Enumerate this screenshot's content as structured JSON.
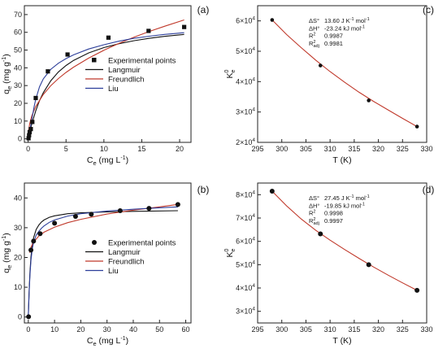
{
  "chart_data": [
    {
      "panel": "(a)",
      "type": "scatter",
      "xlabel": "C",
      "xlabel_sub": "e",
      "xlabel_unit": " (mg L",
      "ylabel": "q",
      "ylabel_sub": "e",
      "ylabel_unit": " (mg g",
      "xlim": [
        -0.5,
        21.5
      ],
      "ylim": [
        -2,
        75
      ],
      "xticks": [
        0,
        5,
        10,
        15,
        20
      ],
      "yticks": [
        0,
        10,
        20,
        30,
        40,
        50,
        60,
        70
      ],
      "legend": "right-middle",
      "series": [
        {
          "name": "Experimental points",
          "kind": "points",
          "marker": "square",
          "color": "#111111",
          "x": [
            0.05,
            0.12,
            0.2,
            0.35,
            0.55,
            1.0,
            2.6,
            5.2,
            10.6,
            15.9,
            20.6
          ],
          "y": [
            0.3,
            2.0,
            3.8,
            5.5,
            9.5,
            23.0,
            38.0,
            47.5,
            57.0,
            60.8,
            63.0
          ]
        },
        {
          "name": "Langmuir",
          "kind": "line",
          "color": "#111111",
          "x": [
            0,
            0.2,
            0.4,
            0.6,
            1.0,
            1.5,
            2.0,
            3.0,
            4.0,
            5.0,
            6.0,
            8.0,
            10.0,
            12.0,
            14.0,
            16.0,
            18.0,
            20.6
          ],
          "y": [
            0,
            3.7,
            7.1,
            10.2,
            15.8,
            21.5,
            26.0,
            32.8,
            37.7,
            41.3,
            44.2,
            48.4,
            51.4,
            53.6,
            55.3,
            56.6,
            57.7,
            58.8
          ]
        },
        {
          "name": "Freundlich",
          "kind": "line",
          "color": "#c0392b",
          "x": [
            0.05,
            0.2,
            0.5,
            1.0,
            2.0,
            3.0,
            4.0,
            5.0,
            6.0,
            8.0,
            10.0,
            12.0,
            14.0,
            16.0,
            18.0,
            20.6
          ],
          "y": [
            4.2,
            8.5,
            13.2,
            18.2,
            25.0,
            30.0,
            34.0,
            37.4,
            40.4,
            45.5,
            49.9,
            53.8,
            57.3,
            60.5,
            63.4,
            67.0
          ]
        },
        {
          "name": "Liu",
          "kind": "line",
          "color": "#2c3e9a",
          "x": [
            0,
            0.1,
            0.2,
            0.4,
            0.6,
            0.8,
            1.0,
            1.5,
            2.0,
            3.0,
            4.0,
            5.0,
            6.0,
            8.0,
            10.0,
            12.0,
            14.0,
            16.0,
            18.0,
            20.6
          ],
          "y": [
            0,
            2.0,
            4.1,
            9.0,
            13.9,
            18.4,
            22.3,
            29.3,
            33.8,
            39.2,
            42.6,
            45.2,
            47.3,
            50.6,
            53.0,
            55.0,
            56.6,
            57.8,
            58.8,
            59.8
          ]
        }
      ]
    },
    {
      "panel": "(c)",
      "type": "scatter",
      "xlabel": "T (K)",
      "ylabel": "K",
      "ylabel_sub": "e",
      "ylabel_sup": "0",
      "xlim": [
        295,
        330
      ],
      "ylim": [
        20000,
        65000
      ],
      "xticks": [
        295,
        300,
        305,
        310,
        315,
        320,
        325,
        330
      ],
      "yticks": [
        20000,
        30000,
        40000,
        50000,
        60000
      ],
      "ytick_mant": [
        "2",
        "3",
        "4",
        "5",
        "6"
      ],
      "points": {
        "color": "#111111",
        "x": [
          298,
          308,
          318,
          328
        ],
        "y": [
          60300,
          45300,
          33800,
          25200
        ]
      },
      "fit": {
        "color": "#c0392b",
        "x": [
          298,
          301,
          304,
          307,
          310,
          313,
          316,
          319,
          322,
          325,
          328
        ],
        "y": [
          60300,
          55500,
          51200,
          47100,
          43300,
          39800,
          36500,
          33500,
          30700,
          27900,
          25200
        ]
      },
      "annotations": [
        {
          "label": "ΔS°",
          "value": "13.60 J K",
          "unit_tail": " mol"
        },
        {
          "label": "ΔH°",
          "value": "-23.24 kJ mol"
        },
        {
          "label": "R",
          "value": "0.9987"
        },
        {
          "label": "R",
          "value": "0.9981"
        }
      ]
    },
    {
      "panel": "(b)",
      "type": "scatter",
      "xlabel": "C",
      "xlabel_sub": "e",
      "xlabel_unit": " (mg L",
      "ylabel": "q",
      "ylabel_sub": "e",
      "ylabel_unit": " (mg g",
      "xlim": [
        -1.5,
        62
      ],
      "ylim": [
        -2,
        45
      ],
      "xticks": [
        0,
        10,
        20,
        30,
        40,
        50,
        60
      ],
      "yticks": [
        0,
        10,
        20,
        30,
        40
      ],
      "legend": "right-middle",
      "series": [
        {
          "name": "Experimental points",
          "kind": "points",
          "marker": "circle",
          "color": "#111111",
          "x": [
            0.1,
            1.0,
            2.0,
            4.5,
            10.0,
            18.0,
            24.0,
            35.0,
            46.0,
            57.0
          ],
          "y": [
            0.1,
            22.5,
            25.5,
            28.0,
            31.5,
            33.8,
            34.5,
            35.7,
            36.5,
            37.8
          ]
        },
        {
          "name": "Langmuir",
          "kind": "line",
          "color": "#111111",
          "x": [
            0,
            0.3,
            0.6,
            1.0,
            1.5,
            2.0,
            3.0,
            4.0,
            5.0,
            6.0,
            8.0,
            10.0,
            15.0,
            20.0,
            30.0,
            40.0,
            57.0
          ],
          "y": [
            0,
            8.5,
            14.8,
            20.2,
            24.2,
            26.6,
            29.4,
            30.9,
            31.9,
            32.6,
            33.5,
            34.0,
            34.7,
            35.0,
            35.3,
            35.5,
            35.7
          ]
        },
        {
          "name": "Freundlich",
          "kind": "line",
          "color": "#c0392b",
          "x": [
            0.5,
            1.0,
            2.0,
            4.0,
            6.0,
            10.0,
            15.0,
            20.0,
            30.0,
            40.0,
            50.0,
            57.0
          ],
          "y": [
            21.6,
            23.4,
            25.2,
            27.2,
            28.5,
            30.2,
            31.7,
            32.8,
            34.6,
            35.9,
            37.0,
            37.8
          ]
        },
        {
          "name": "Liu",
          "kind": "line",
          "color": "#2c3e9a",
          "x": [
            0,
            0.3,
            0.6,
            1.0,
            1.5,
            2.0,
            3.0,
            4.0,
            5.0,
            6.0,
            8.0,
            10.0,
            15.0,
            20.0,
            30.0,
            40.0,
            50.0,
            57.0
          ],
          "y": [
            0,
            7.8,
            13.8,
            19.0,
            22.9,
            25.0,
            27.5,
            28.8,
            29.8,
            30.6,
            31.8,
            32.6,
            33.9,
            34.7,
            35.6,
            36.2,
            36.7,
            37.0
          ]
        }
      ]
    },
    {
      "panel": "(d)",
      "type": "scatter",
      "xlabel": "T (K)",
      "ylabel": "K",
      "ylabel_sub": "e",
      "ylabel_sup": "0",
      "xlim": [
        295,
        330
      ],
      "ylim": [
        25000,
        85000
      ],
      "xticks": [
        295,
        300,
        305,
        310,
        315,
        320,
        325,
        330
      ],
      "yticks": [
        30000,
        40000,
        50000,
        60000,
        70000,
        80000
      ],
      "ytick_mant": [
        "3",
        "4",
        "5",
        "6",
        "7",
        "8"
      ],
      "points": {
        "color": "#111111",
        "x": [
          298,
          308,
          318,
          328
        ],
        "y": [
          81500,
          63200,
          50000,
          39000
        ]
      },
      "fit": {
        "color": "#c0392b",
        "x": [
          298,
          301,
          304,
          307,
          310,
          313,
          316,
          319,
          322,
          325,
          328
        ],
        "y": [
          81500,
          75200,
          69600,
          64800,
          60500,
          56500,
          52700,
          49000,
          45500,
          42200,
          39000
        ]
      },
      "annotations": [
        {
          "label": "ΔS°",
          "value": "27.45 J K",
          "unit_tail": " mol"
        },
        {
          "label": "ΔH°",
          "value": "-19.85 kJ mol"
        },
        {
          "label": "R",
          "value": "0.9998"
        },
        {
          "label": "R",
          "value": "0.9997"
        }
      ]
    }
  ],
  "common": {
    "tick_exp_base": "×10",
    "tick_exp": "4",
    "minus_one": "-1",
    "two": "2",
    "adj": "adj"
  }
}
